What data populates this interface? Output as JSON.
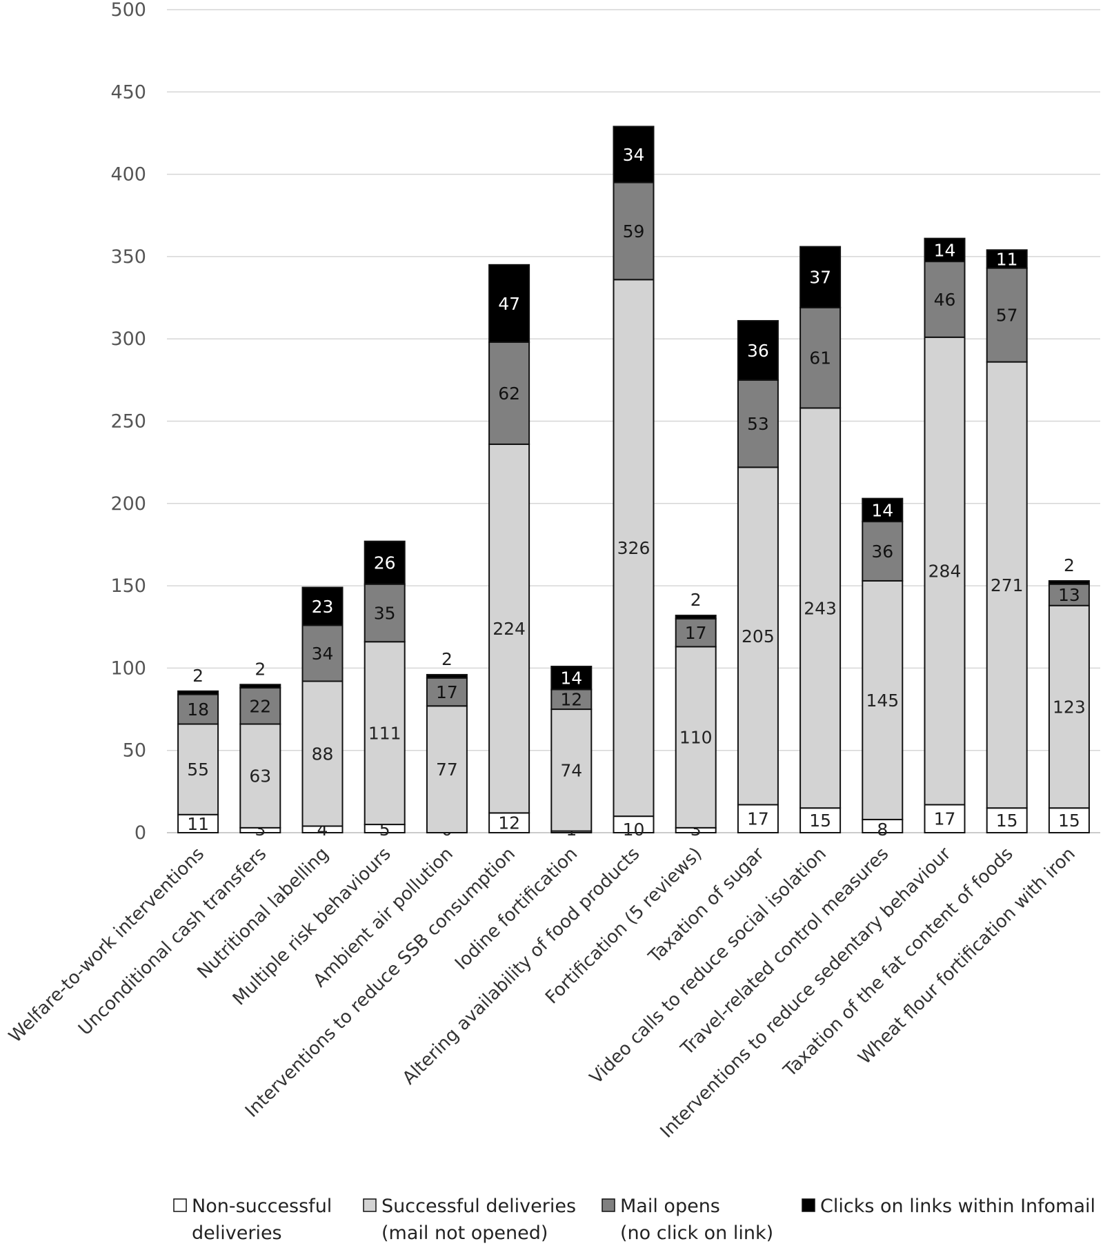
{
  "chart_data": {
    "type": "bar",
    "stacked": true,
    "title": "",
    "xlabel": "",
    "ylabel": "",
    "ylim": [
      0,
      500
    ],
    "yticks": [
      0,
      50,
      100,
      150,
      200,
      250,
      300,
      350,
      400,
      450,
      500
    ],
    "grid": "horizontal",
    "legend_position": "bottom",
    "categories": [
      "Welfare-to-work interventions",
      "Unconditional cash transfers",
      "Nutritional labelling",
      "Multiple risk behaviours",
      "Ambient air pollution",
      "Interventions to reduce SSB consumption",
      "Iodine fortification",
      "Altering availability of food products",
      "Fortification (5 reviews)",
      "Taxation of sugar",
      "Video calls to reduce social isolation",
      "Travel-related control measures",
      "Interventions to reduce sedentary behaviour",
      "Taxation of the fat content of foods",
      "Wheat flour fortification with iron"
    ],
    "series": [
      {
        "name_line1": "Non-successful",
        "name_line2": "deliveries",
        "color": "#ffffff",
        "label_color": "#222222",
        "values": [
          11,
          3,
          4,
          5,
          0,
          12,
          1,
          10,
          3,
          17,
          15,
          8,
          17,
          15,
          15
        ]
      },
      {
        "name_line1": "Successful deliveries",
        "name_line2": "(mail not opened)",
        "color": "#d3d3d3",
        "label_color": "#222222",
        "values": [
          55,
          63,
          88,
          111,
          77,
          224,
          74,
          326,
          110,
          205,
          243,
          145,
          284,
          271,
          123
        ]
      },
      {
        "name_line1": "Mail opens",
        "name_line2": "(no click on link)",
        "color": "#808080",
        "label_color": "#111111",
        "values": [
          18,
          22,
          34,
          35,
          17,
          62,
          12,
          59,
          17,
          53,
          61,
          36,
          46,
          57,
          13
        ]
      },
      {
        "name_line1": "Clicks on links within Infomail",
        "name_line2": "",
        "color": "#000000",
        "label_color": "#ffffff",
        "values": [
          2,
          2,
          23,
          26,
          2,
          47,
          14,
          34,
          2,
          36,
          37,
          14,
          14,
          11,
          2
        ]
      }
    ]
  }
}
